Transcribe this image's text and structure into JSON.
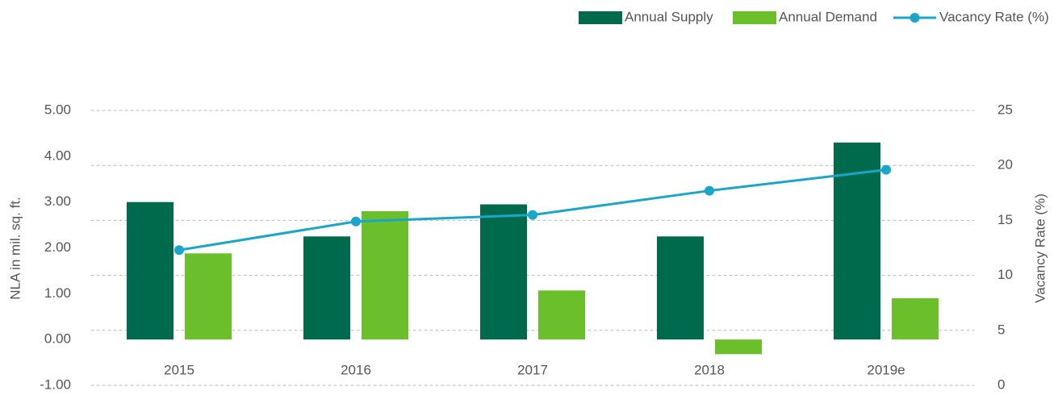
{
  "chart_data": {
    "type": "bar-line",
    "categories": [
      "2015",
      "2016",
      "2017",
      "2018",
      "2019e"
    ],
    "series": [
      {
        "name": "Annual Supply",
        "type": "bar",
        "color": "#006b4c",
        "values": [
          3.0,
          2.25,
          2.95,
          2.25,
          4.3
        ]
      },
      {
        "name": "Annual Demand",
        "type": "bar",
        "color": "#6abf2a",
        "values": [
          1.88,
          2.8,
          1.07,
          -0.32,
          0.9
        ]
      },
      {
        "name": "Vacancy Rate (%)",
        "type": "line",
        "axis": "y2",
        "color": "#1aa6c9",
        "values": [
          12.3,
          14.9,
          15.5,
          17.7,
          19.6
        ]
      }
    ],
    "ylabel": "NLA in mil. sq. ft.",
    "y2label": "Vacancy Rate (%)",
    "ylim": [
      -1,
      5
    ],
    "yticks": [
      {
        "value": 5,
        "label": "5.00"
      },
      {
        "value": 4,
        "label": "4.00"
      },
      {
        "value": 3,
        "label": "3.00"
      },
      {
        "value": 2,
        "label": "2.00"
      },
      {
        "value": 1,
        "label": "1.00"
      },
      {
        "value": 0,
        "label": "0.00"
      },
      {
        "value": -1,
        "label": "-1.00"
      }
    ],
    "y2lim": [
      0,
      25
    ],
    "y2ticks": [
      25,
      20,
      15,
      10,
      5,
      0
    ],
    "grid": true,
    "legend": "top-right"
  }
}
